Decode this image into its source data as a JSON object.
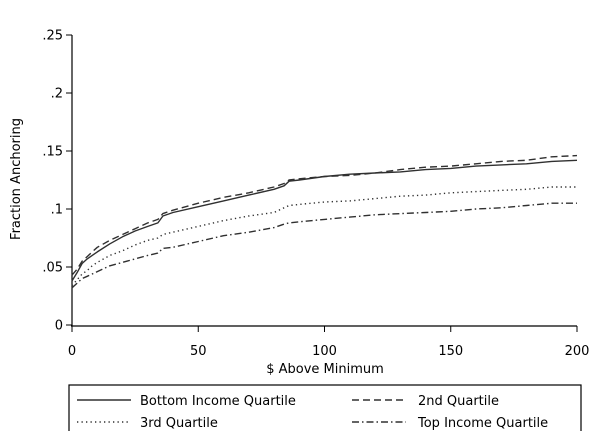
{
  "chart_data": {
    "type": "line",
    "title": "",
    "xlabel": "$ Above Minimum",
    "ylabel": "Fraction Anchoring",
    "xlim": [
      0,
      200
    ],
    "ylim": [
      0,
      0.25
    ],
    "xticks": [
      0,
      50,
      100,
      150,
      200
    ],
    "xtick_labels": [
      "0",
      "50",
      "100",
      "150",
      "200"
    ],
    "yticks": [
      0,
      0.05,
      0.1,
      0.15,
      0.2,
      0.25
    ],
    "ytick_labels": [
      "0",
      ".05",
      ".1",
      ".15",
      ".2",
      ".25"
    ],
    "grid": false,
    "legend_position": "bottom",
    "x": [
      0,
      2,
      4,
      6,
      8,
      10,
      15,
      20,
      25,
      30,
      34,
      36,
      40,
      50,
      60,
      70,
      80,
      84,
      86,
      90,
      100,
      110,
      120,
      130,
      140,
      150,
      160,
      170,
      180,
      190,
      200
    ],
    "series": [
      {
        "name": "Bottom Income Quartile",
        "dash": "solid",
        "values": [
          0.038,
          0.045,
          0.053,
          0.057,
          0.06,
          0.063,
          0.07,
          0.076,
          0.081,
          0.085,
          0.088,
          0.094,
          0.097,
          0.102,
          0.107,
          0.112,
          0.117,
          0.12,
          0.124,
          0.125,
          0.128,
          0.13,
          0.131,
          0.132,
          0.134,
          0.135,
          0.137,
          0.138,
          0.139,
          0.141,
          0.142
        ]
      },
      {
        "name": "2nd Quartile",
        "dash": "dash",
        "values": [
          0.043,
          0.048,
          0.055,
          0.059,
          0.063,
          0.067,
          0.073,
          0.078,
          0.083,
          0.088,
          0.091,
          0.096,
          0.099,
          0.105,
          0.11,
          0.114,
          0.119,
          0.122,
          0.125,
          0.126,
          0.128,
          0.129,
          0.131,
          0.134,
          0.136,
          0.137,
          0.139,
          0.141,
          0.142,
          0.145,
          0.146
        ]
      },
      {
        "name": "3rd Quartile",
        "dash": "dot",
        "values": [
          0.034,
          0.039,
          0.044,
          0.047,
          0.051,
          0.054,
          0.06,
          0.064,
          0.069,
          0.073,
          0.075,
          0.078,
          0.08,
          0.085,
          0.09,
          0.094,
          0.097,
          0.101,
          0.103,
          0.104,
          0.106,
          0.107,
          0.109,
          0.111,
          0.112,
          0.114,
          0.115,
          0.116,
          0.117,
          0.119,
          0.119
        ]
      },
      {
        "name": "Top Income Quartile",
        "dash": "dashdot",
        "values": [
          0.032,
          0.036,
          0.04,
          0.042,
          0.044,
          0.046,
          0.051,
          0.054,
          0.057,
          0.06,
          0.062,
          0.066,
          0.067,
          0.072,
          0.077,
          0.08,
          0.084,
          0.087,
          0.088,
          0.089,
          0.091,
          0.093,
          0.095,
          0.096,
          0.097,
          0.098,
          0.1,
          0.101,
          0.103,
          0.105,
          0.105
        ]
      }
    ],
    "colors": {
      "line": "#303030",
      "axis": "#000000",
      "background": "#ffffff"
    }
  }
}
